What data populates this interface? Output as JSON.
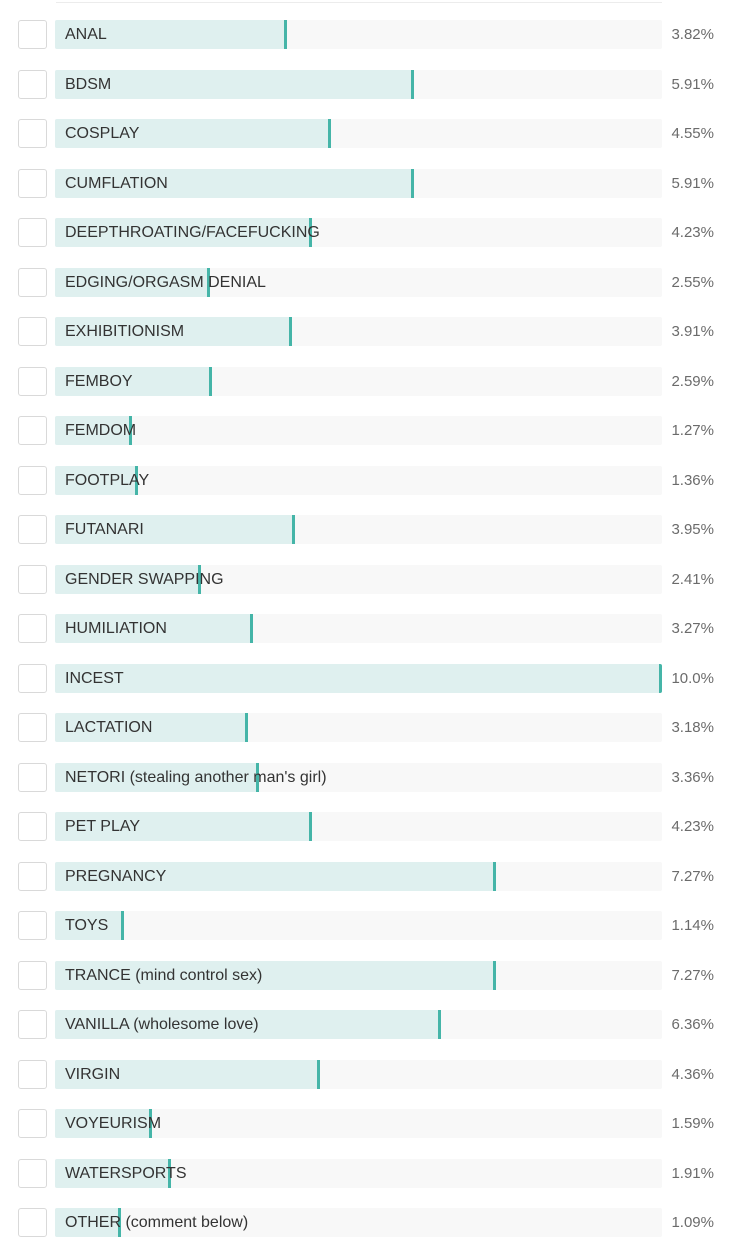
{
  "poll": {
    "options": [
      {
        "label": "ANAL",
        "percent_text": "3.82%",
        "percent": 3.82
      },
      {
        "label": "BDSM",
        "percent_text": "5.91%",
        "percent": 5.91
      },
      {
        "label": "COSPLAY",
        "percent_text": "4.55%",
        "percent": 4.55
      },
      {
        "label": "CUMFLATION",
        "percent_text": "5.91%",
        "percent": 5.91
      },
      {
        "label": "DEEPTHROATING/FACEFUCKING",
        "percent_text": "4.23%",
        "percent": 4.23
      },
      {
        "label": "EDGING/ORGASM DENIAL",
        "percent_text": "2.55%",
        "percent": 2.55
      },
      {
        "label": "EXHIBITIONISM",
        "percent_text": "3.91%",
        "percent": 3.91
      },
      {
        "label": "FEMBOY",
        "percent_text": "2.59%",
        "percent": 2.59
      },
      {
        "label": "FEMDOM",
        "percent_text": "1.27%",
        "percent": 1.27
      },
      {
        "label": "FOOTPLAY",
        "percent_text": "1.36%",
        "percent": 1.36
      },
      {
        "label": "FUTANARI",
        "percent_text": "3.95%",
        "percent": 3.95
      },
      {
        "label": "GENDER SWAPPING",
        "percent_text": "2.41%",
        "percent": 2.41
      },
      {
        "label": "HUMILIATION",
        "percent_text": "3.27%",
        "percent": 3.27
      },
      {
        "label": "INCEST",
        "percent_text": "10.0%",
        "percent": 10.0
      },
      {
        "label": "LACTATION",
        "percent_text": "3.18%",
        "percent": 3.18
      },
      {
        "label": "NETORI (stealing another man's girl)",
        "percent_text": "3.36%",
        "percent": 3.36
      },
      {
        "label": "PET PLAY",
        "percent_text": "4.23%",
        "percent": 4.23
      },
      {
        "label": "PREGNANCY",
        "percent_text": "7.27%",
        "percent": 7.27
      },
      {
        "label": "TOYS",
        "percent_text": "1.14%",
        "percent": 1.14
      },
      {
        "label": "TRANCE (mind control sex)",
        "percent_text": "7.27%",
        "percent": 7.27
      },
      {
        "label": "VANILLA (wholesome love)",
        "percent_text": "6.36%",
        "percent": 6.36
      },
      {
        "label": "VIRGIN",
        "percent_text": "4.36%",
        "percent": 4.36
      },
      {
        "label": "VOYEURISM",
        "percent_text": "1.59%",
        "percent": 1.59
      },
      {
        "label": "WATERSPORTS",
        "percent_text": "1.91%",
        "percent": 1.91
      },
      {
        "label": "OTHER (comment below)",
        "percent_text": "1.09%",
        "percent": 1.09
      }
    ]
  },
  "colors": {
    "bar_fill": "#dff0ef",
    "bar_marker": "#45b5a8",
    "bar_track": "#f8f8f8"
  }
}
